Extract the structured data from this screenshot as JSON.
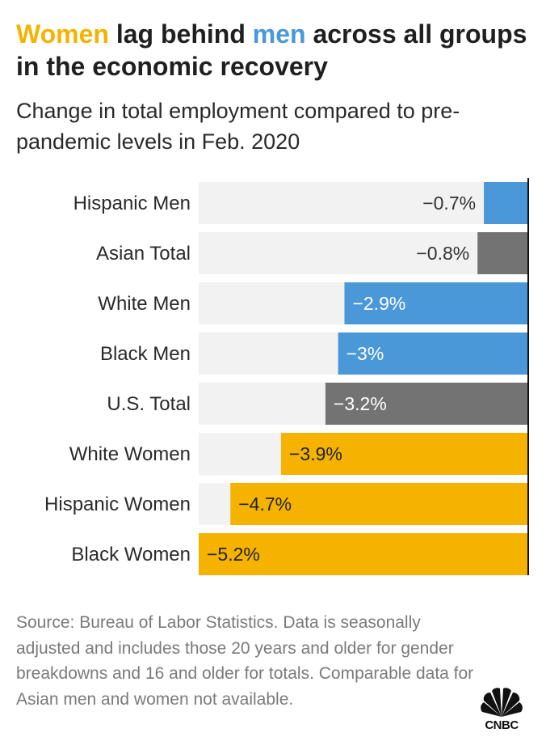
{
  "header": {
    "title_part1": "Women",
    "title_part2": " lag behind ",
    "title_part3": "men",
    "title_part4": " across all groups in the economic recovery",
    "subtitle": "Change in total employment compared to pre-pandemic levels in Feb. 2020"
  },
  "colors": {
    "women": "#f5b300",
    "men": "#4a98d8",
    "total": "#737373",
    "track": "#f2f2f2",
    "axis": "#111111"
  },
  "chart_data": {
    "type": "bar",
    "orientation": "horizontal",
    "categories": [
      "Hispanic Men",
      "Asian Total",
      "White Men",
      "Black Men",
      "U.S. Total",
      "White Women",
      "Hispanic Women",
      "Black Women"
    ],
    "values": [
      -0.7,
      -0.8,
      -2.9,
      -3.0,
      -3.2,
      -3.9,
      -4.7,
      -5.2
    ],
    "labels": [
      "−0.7%",
      "−0.8%",
      "−2.9%",
      "−3%",
      "−3.2%",
      "−3.9%",
      "−4.7%",
      "−5.2%"
    ],
    "groups": [
      "men",
      "total",
      "men",
      "men",
      "total",
      "women",
      "women",
      "women"
    ],
    "xlim": [
      -5.2,
      0
    ],
    "grid": false,
    "legend": "none"
  },
  "footer": {
    "source": "Source: Bureau of Labor Statistics. Data is seasonally adjusted and includes those 20 years and older for gender breakdowns and 16 and older for totals. Comparable data for Asian men and women not available.",
    "logo_text": "CNBC"
  }
}
